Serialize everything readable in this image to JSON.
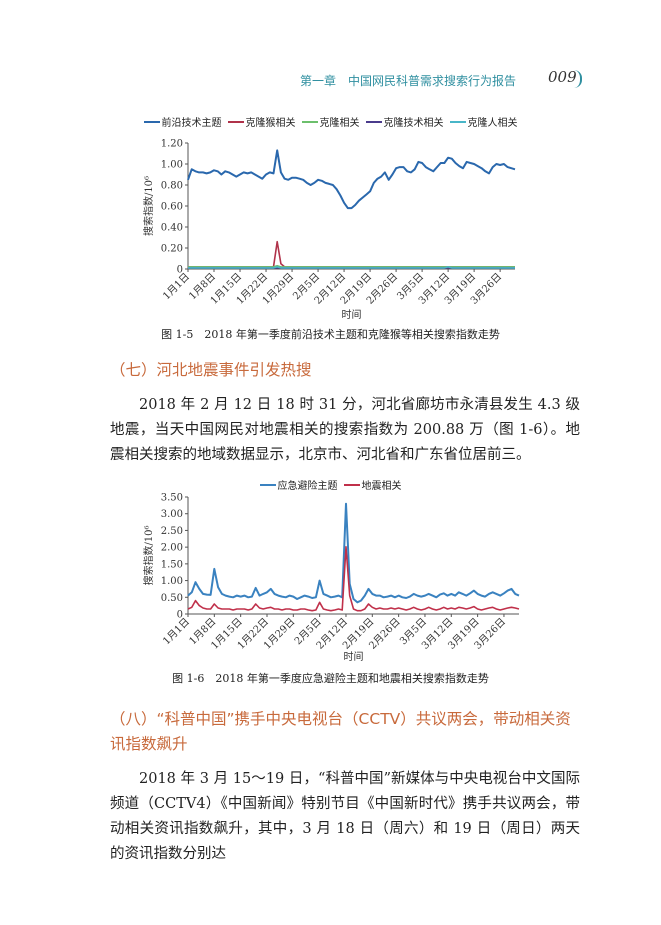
{
  "header": {
    "chapter": "第一章　中国网民科普需求搜索行为报告",
    "page": "009"
  },
  "chart_data": [
    {
      "type": "line",
      "y_label": "搜索指数/10⁶",
      "x_label": "时间",
      "caption": "图 1-5　2018 年第一季度前沿技术主题和克隆猴等相关搜索指数走势",
      "categories": [
        "1月1日",
        null,
        null,
        null,
        null,
        null,
        null,
        "1月8日",
        null,
        null,
        null,
        null,
        null,
        null,
        "1月15日",
        null,
        null,
        null,
        null,
        null,
        null,
        "1月22日",
        null,
        null,
        null,
        null,
        null,
        null,
        "1月29日",
        null,
        null,
        null,
        null,
        null,
        null,
        "2月5日",
        null,
        null,
        null,
        null,
        null,
        null,
        "2月12日",
        null,
        null,
        null,
        null,
        null,
        null,
        "2月19日",
        null,
        null,
        null,
        null,
        null,
        null,
        "2月26日",
        null,
        null,
        null,
        null,
        null,
        null,
        "3月5日",
        null,
        null,
        null,
        null,
        null,
        null,
        "3月12日",
        null,
        null,
        null,
        null,
        null,
        null,
        "3月19日",
        null,
        null,
        null,
        null,
        null,
        null,
        "3月26日",
        null,
        null,
        null,
        null
      ],
      "ylim": [
        0,
        1.2
      ],
      "yticks": [
        0,
        {
          "value": 0.2,
          "label": "0.20"
        },
        {
          "value": 0.4,
          "label": "0.40"
        },
        {
          "value": 0.6,
          "label": "0.60"
        },
        {
          "value": 0.8,
          "label": "0.80"
        },
        {
          "value": 1,
          "label": "1.00"
        },
        {
          "value": 1.2,
          "label": "1.20"
        }
      ],
      "series": [
        {
          "name": "前沿技术主题",
          "color": "#2a68ad",
          "values": [
            0.85,
            0.95,
            0.93,
            0.92,
            0.92,
            0.91,
            0.92,
            0.94,
            0.93,
            0.9,
            0.93,
            0.92,
            0.9,
            0.88,
            0.9,
            0.92,
            0.91,
            0.92,
            0.9,
            0.88,
            0.86,
            0.9,
            0.92,
            0.91,
            1.13,
            0.92,
            0.86,
            0.85,
            0.87,
            0.87,
            0.86,
            0.85,
            0.82,
            0.8,
            0.82,
            0.85,
            0.84,
            0.82,
            0.81,
            0.8,
            0.76,
            0.7,
            0.63,
            0.58,
            0.58,
            0.61,
            0.65,
            0.68,
            0.71,
            0.74,
            0.82,
            0.86,
            0.88,
            0.92,
            0.85,
            0.9,
            0.96,
            0.97,
            0.97,
            0.93,
            0.92,
            0.95,
            1.02,
            1.01,
            0.97,
            0.95,
            0.93,
            0.97,
            1.01,
            1.01,
            1.06,
            1.05,
            1.01,
            0.98,
            0.96,
            1.02,
            1.01,
            1.0,
            0.98,
            0.96,
            0.93,
            0.91,
            0.97,
            1.0,
            0.99,
            1.0,
            0.97,
            0.96,
            0.95
          ]
        },
        {
          "name": "克隆猴相关",
          "color": "#b0324a",
          "values": [
            0.02,
            0.02,
            0.02,
            0.02,
            0.02,
            0.02,
            0.02,
            0.02,
            0.02,
            0.02,
            0.02,
            0.02,
            0.02,
            0.02,
            0.02,
            0.02,
            0.02,
            0.02,
            0.02,
            0.02,
            0.02,
            0.02,
            0.02,
            0.02,
            0.26,
            0.05,
            0.02,
            0.02,
            0.02,
            0.02,
            0.02,
            0.02,
            0.02,
            0.02,
            0.02,
            0.02,
            0.02,
            0.02,
            0.02,
            0.02,
            0.02,
            0.02,
            0.02,
            0.02,
            0.02,
            0.02,
            0.02,
            0.02,
            0.02,
            0.02,
            0.02,
            0.02,
            0.02,
            0.02,
            0.02,
            0.02,
            0.02,
            0.02,
            0.02,
            0.02,
            0.02,
            0.02,
            0.02,
            0.02,
            0.02,
            0.02,
            0.02,
            0.02,
            0.02,
            0.02,
            0.02,
            0.02,
            0.02,
            0.02,
            0.02,
            0.02,
            0.02,
            0.02,
            0.02,
            0.02,
            0.02,
            0.02,
            0.02,
            0.02,
            0.02,
            0.02,
            0.02,
            0.02,
            0.02
          ]
        },
        {
          "name": "克隆相关",
          "color": "#6cbf6c",
          "values": [
            0.02,
            0.02,
            0.02,
            0.02,
            0.02,
            0.02,
            0.02,
            0.02,
            0.02,
            0.02,
            0.02,
            0.02,
            0.02,
            0.02,
            0.02,
            0.02,
            0.02,
            0.02,
            0.02,
            0.02,
            0.02,
            0.02,
            0.02,
            0.02,
            0.03,
            0.02,
            0.02,
            0.02,
            0.02,
            0.02,
            0.02,
            0.02,
            0.02,
            0.02,
            0.02,
            0.02,
            0.02,
            0.02,
            0.02,
            0.02,
            0.02,
            0.02,
            0.02,
            0.02,
            0.02,
            0.02,
            0.02,
            0.02,
            0.02,
            0.02,
            0.02,
            0.02,
            0.02,
            0.02,
            0.02,
            0.02,
            0.02,
            0.02,
            0.02,
            0.02,
            0.02,
            0.02,
            0.02,
            0.02,
            0.02,
            0.02,
            0.02,
            0.02,
            0.02,
            0.02,
            0.02,
            0.02,
            0.02,
            0.02,
            0.02,
            0.02,
            0.02,
            0.02,
            0.02,
            0.02,
            0.02,
            0.02,
            0.02,
            0.02,
            0.02,
            0.02,
            0.02,
            0.02,
            0.02
          ]
        },
        {
          "name": "克隆技术相关",
          "color": "#4a3b8c",
          "values": [
            0.01,
            0.01,
            0.01,
            0.01,
            0.01,
            0.01,
            0.01,
            0.01,
            0.01,
            0.01,
            0.01,
            0.01,
            0.01,
            0.01,
            0.01,
            0.01,
            0.01,
            0.01,
            0.01,
            0.01,
            0.01,
            0.01,
            0.01,
            0.01,
            0.01,
            0.01,
            0.01,
            0.01,
            0.01,
            0.01,
            0.01,
            0.01,
            0.01,
            0.01,
            0.01,
            0.01,
            0.01,
            0.01,
            0.01,
            0.01,
            0.01,
            0.01,
            0.01,
            0.01,
            0.01,
            0.01,
            0.01,
            0.01,
            0.01,
            0.01,
            0.01,
            0.01,
            0.01,
            0.01,
            0.01,
            0.01,
            0.01,
            0.01,
            0.01,
            0.01,
            0.01,
            0.01,
            0.01,
            0.01,
            0.01,
            0.01,
            0.01,
            0.01,
            0.01,
            0.01,
            0.01,
            0.01,
            0.01,
            0.01,
            0.01,
            0.01,
            0.01,
            0.01,
            0.01,
            0.01,
            0.01,
            0.01,
            0.01,
            0.01,
            0.01,
            0.01,
            0.01,
            0.01,
            0.01
          ]
        },
        {
          "name": "克隆人相关",
          "color": "#48b6c8",
          "values": [
            0.01,
            0.01,
            0.01,
            0.01,
            0.01,
            0.01,
            0.01,
            0.01,
            0.01,
            0.01,
            0.01,
            0.01,
            0.01,
            0.01,
            0.01,
            0.01,
            0.01,
            0.01,
            0.01,
            0.01,
            0.01,
            0.01,
            0.01,
            0.01,
            0.02,
            0.01,
            0.01,
            0.01,
            0.01,
            0.01,
            0.01,
            0.01,
            0.01,
            0.01,
            0.01,
            0.01,
            0.01,
            0.01,
            0.01,
            0.01,
            0.01,
            0.01,
            0.01,
            0.01,
            0.01,
            0.01,
            0.01,
            0.01,
            0.01,
            0.01,
            0.01,
            0.01,
            0.01,
            0.01,
            0.01,
            0.01,
            0.01,
            0.01,
            0.01,
            0.01,
            0.01,
            0.01,
            0.01,
            0.01,
            0.01,
            0.01,
            0.01,
            0.01,
            0.01,
            0.01,
            0.02,
            0.01,
            0.01,
            0.01,
            0.01,
            0.01,
            0.01,
            0.01,
            0.01,
            0.01,
            0.01,
            0.01,
            0.01,
            0.01,
            0.01,
            0.01,
            0.01,
            0.01,
            0.01
          ]
        }
      ]
    },
    {
      "type": "line",
      "y_label": "搜索指数/10⁶",
      "x_label": "时间",
      "caption": "图 1-6　2018 年第一季度应急避险主题和地震相关搜索指数走势",
      "categories": [
        "1月1日",
        null,
        null,
        null,
        null,
        null,
        null,
        "1月8日",
        null,
        null,
        null,
        null,
        null,
        null,
        "1月15日",
        null,
        null,
        null,
        null,
        null,
        null,
        "1月22日",
        null,
        null,
        null,
        null,
        null,
        null,
        "1月29日",
        null,
        null,
        null,
        null,
        null,
        null,
        "2月5日",
        null,
        null,
        null,
        null,
        null,
        null,
        "2月12日",
        null,
        null,
        null,
        null,
        null,
        null,
        "2月19日",
        null,
        null,
        null,
        null,
        null,
        null,
        "2月26日",
        null,
        null,
        null,
        null,
        null,
        null,
        "3月5日",
        null,
        null,
        null,
        null,
        null,
        null,
        "3月12日",
        null,
        null,
        null,
        null,
        null,
        null,
        "3月19日",
        null,
        null,
        null,
        null,
        null,
        null,
        "3月26日",
        null,
        null,
        null,
        null
      ],
      "ylim": [
        0,
        3.5
      ],
      "yticks": [
        0,
        {
          "value": 0.5,
          "label": "0.50"
        },
        {
          "value": 1,
          "label": "1.00"
        },
        {
          "value": 1.5,
          "label": "1.50"
        },
        {
          "value": 2,
          "label": "2.00"
        },
        {
          "value": 2.5,
          "label": "2.50"
        },
        {
          "value": 3,
          "label": "3.00"
        },
        {
          "value": 3.5,
          "label": "3.50"
        }
      ],
      "series": [
        {
          "name": "应急避险主题",
          "color": "#3a82c0",
          "values": [
            0.55,
            0.65,
            0.95,
            0.75,
            0.6,
            0.58,
            0.57,
            1.35,
            0.8,
            0.6,
            0.55,
            0.52,
            0.5,
            0.55,
            0.52,
            0.55,
            0.5,
            0.52,
            0.78,
            0.55,
            0.6,
            0.65,
            0.75,
            0.6,
            0.55,
            0.52,
            0.5,
            0.55,
            0.52,
            0.45,
            0.5,
            0.55,
            0.52,
            0.48,
            0.5,
            1.0,
            0.6,
            0.55,
            0.5,
            0.52,
            0.55,
            0.5,
            3.3,
            0.9,
            0.45,
            0.35,
            0.4,
            0.55,
            0.75,
            0.6,
            0.55,
            0.55,
            0.5,
            0.52,
            0.55,
            0.5,
            0.55,
            0.5,
            0.48,
            0.52,
            0.6,
            0.55,
            0.52,
            0.55,
            0.6,
            0.55,
            0.5,
            0.58,
            0.62,
            0.55,
            0.6,
            0.55,
            0.65,
            0.6,
            0.55,
            0.62,
            0.7,
            0.6,
            0.55,
            0.52,
            0.6,
            0.65,
            0.6,
            0.55,
            0.62,
            0.7,
            0.75,
            0.6,
            0.55
          ]
        },
        {
          "name": "地震相关",
          "color": "#c0304a",
          "values": [
            0.15,
            0.2,
            0.4,
            0.25,
            0.18,
            0.15,
            0.15,
            0.3,
            0.18,
            0.15,
            0.15,
            0.15,
            0.12,
            0.15,
            0.15,
            0.15,
            0.12,
            0.15,
            0.3,
            0.18,
            0.15,
            0.18,
            0.2,
            0.15,
            0.15,
            0.12,
            0.15,
            0.15,
            0.12,
            0.12,
            0.15,
            0.15,
            0.12,
            0.1,
            0.12,
            0.35,
            0.15,
            0.12,
            0.1,
            0.12,
            0.15,
            0.12,
            2.01,
            0.55,
            0.15,
            0.1,
            0.1,
            0.15,
            0.3,
            0.2,
            0.15,
            0.18,
            0.15,
            0.15,
            0.18,
            0.15,
            0.18,
            0.15,
            0.12,
            0.15,
            0.2,
            0.15,
            0.12,
            0.15,
            0.2,
            0.15,
            0.12,
            0.15,
            0.2,
            0.15,
            0.18,
            0.15,
            0.2,
            0.18,
            0.15,
            0.18,
            0.22,
            0.15,
            0.12,
            0.15,
            0.18,
            0.2,
            0.15,
            0.12,
            0.15,
            0.18,
            0.2,
            0.18,
            0.15
          ]
        }
      ]
    }
  ],
  "sections": [
    {
      "heading": "（七）河北地震事件引发热搜",
      "paragraph": "2018 年 2 月 12 日 18 时 31 分，河北省廊坊市永清县发生 4.3 级地震，当天中国网民对地震相关的搜索指数为 200.88 万（图 1-6）。地震相关搜索的地域数据显示，北京市、河北省和广东省位居前三。"
    },
    {
      "heading": "（八）“科普中国”携手中央电视台（CCTV）共议两会，带动相关资讯指数飙升",
      "paragraph": "2018 年 3 月 15～19 日，“科普中国”新媒体与中央电视台中文国际频道（CCTV4）《中国新闻》特别节目《中国新时代》携手共议两会，带动相关资讯指数飙升，其中，3 月 18 日（周六）和 19 日（周日）两天的资讯指数分别达"
    }
  ]
}
